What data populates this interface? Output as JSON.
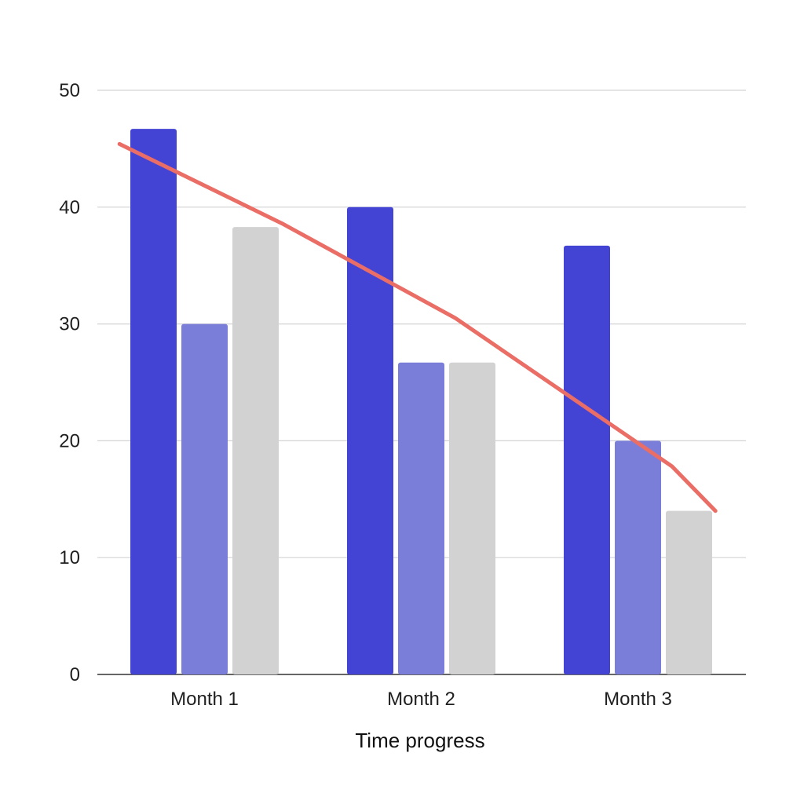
{
  "chart_data": {
    "type": "bar",
    "title": "",
    "xlabel": "Time progress",
    "ylabel": "",
    "categories": [
      "Month 1",
      "Month 2",
      "Month 3"
    ],
    "ylim": [
      0,
      50
    ],
    "yticks": [
      0,
      10,
      20,
      30,
      40,
      50
    ],
    "grid": true,
    "legend": "none",
    "series": [
      {
        "type": "bar",
        "color": "#4444d4",
        "values": [
          46.7,
          40,
          36.7
        ]
      },
      {
        "type": "bar",
        "color": "#7b7ed9",
        "values": [
          30,
          26.7,
          20
        ]
      },
      {
        "type": "bar",
        "color": "#d2d2d2",
        "values": [
          38.3,
          26.7,
          14
        ]
      },
      {
        "type": "line",
        "color": "#ea6d66",
        "x": [
          0.95,
          1.7,
          2.5,
          3.5,
          3.7
        ],
        "values": [
          45.4,
          38.6,
          30.5,
          17.8,
          14
        ]
      }
    ]
  }
}
